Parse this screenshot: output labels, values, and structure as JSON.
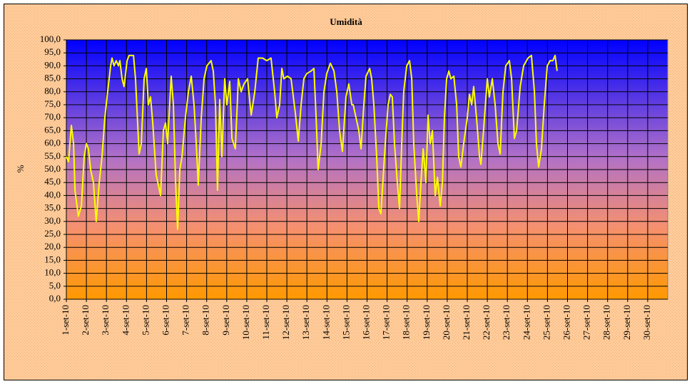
{
  "chart_data": {
    "type": "line",
    "title": "Umidità",
    "y_label": "%",
    "xlim": [
      1,
      31
    ],
    "ylim": [
      0,
      100
    ],
    "grid": true,
    "xticks": [
      {
        "value": 1,
        "label": "1-set-10"
      },
      {
        "value": 2,
        "label": "2-set-10"
      },
      {
        "value": 3,
        "label": "3-set-10"
      },
      {
        "value": 4,
        "label": "4-set-10"
      },
      {
        "value": 5,
        "label": "5-set-10"
      },
      {
        "value": 6,
        "label": "6-set-10"
      },
      {
        "value": 7,
        "label": "7-set-10"
      },
      {
        "value": 8,
        "label": "8-set-10"
      },
      {
        "value": 9,
        "label": "9-set-10"
      },
      {
        "value": 10,
        "label": "10-set-10"
      },
      {
        "value": 11,
        "label": "11-set-10"
      },
      {
        "value": 12,
        "label": "12-set-10"
      },
      {
        "value": 13,
        "label": "13-set-10"
      },
      {
        "value": 14,
        "label": "14-set-10"
      },
      {
        "value": 15,
        "label": "15-set-10"
      },
      {
        "value": 16,
        "label": "16-set-10"
      },
      {
        "value": 17,
        "label": "17-set-10"
      },
      {
        "value": 18,
        "label": "18-set-10"
      },
      {
        "value": 19,
        "label": "19-set-10"
      },
      {
        "value": 20,
        "label": "20-set-10"
      },
      {
        "value": 21,
        "label": "21-set-10"
      },
      {
        "value": 22,
        "label": "22-set-10"
      },
      {
        "value": 23,
        "label": "23-set-10"
      },
      {
        "value": 24,
        "label": "24-set-10"
      },
      {
        "value": 25,
        "label": "25-set-10"
      },
      {
        "value": 26,
        "label": "26-set-10"
      },
      {
        "value": 27,
        "label": "27-set-10"
      },
      {
        "value": 28,
        "label": "28-set-10"
      },
      {
        "value": 29,
        "label": "29-set-10"
      },
      {
        "value": 30,
        "label": "30-set-10"
      }
    ],
    "yticks": [
      {
        "value": 0,
        "label": "0,0"
      },
      {
        "value": 5,
        "label": "5,0"
      },
      {
        "value": 10,
        "label": "10,0"
      },
      {
        "value": 15,
        "label": "15,0"
      },
      {
        "value": 20,
        "label": "20,0"
      },
      {
        "value": 25,
        "label": "25,0"
      },
      {
        "value": 30,
        "label": "30,0"
      },
      {
        "value": 35,
        "label": "35,0"
      },
      {
        "value": 40,
        "label": "40,0"
      },
      {
        "value": 45,
        "label": "45,0"
      },
      {
        "value": 50,
        "label": "50,0"
      },
      {
        "value": 55,
        "label": "55,0"
      },
      {
        "value": 60,
        "label": "60,0"
      },
      {
        "value": 65,
        "label": "65,0"
      },
      {
        "value": 70,
        "label": "70,0"
      },
      {
        "value": 75,
        "label": "75,0"
      },
      {
        "value": 80,
        "label": "80,0"
      },
      {
        "value": 85,
        "label": "85,0"
      },
      {
        "value": 90,
        "label": "90,0"
      },
      {
        "value": 95,
        "label": "95,0"
      },
      {
        "value": 100,
        "label": "100,0"
      }
    ],
    "x": [
      1.0,
      1.11,
      1.25,
      1.36,
      1.43,
      1.6,
      1.75,
      1.89,
      2.0,
      2.1,
      2.21,
      2.35,
      2.49,
      2.64,
      2.78,
      2.92,
      3.06,
      3.21,
      3.28,
      3.38,
      3.49,
      3.6,
      3.67,
      3.78,
      3.88,
      4.03,
      4.13,
      4.35,
      4.45,
      4.63,
      4.74,
      4.88,
      4.99,
      5.09,
      5.2,
      5.31,
      5.48,
      5.7,
      5.84,
      5.95,
      6.05,
      6.23,
      6.34,
      6.45,
      6.55,
      6.66,
      6.77,
      6.94,
      7.09,
      7.23,
      7.37,
      7.48,
      7.58,
      7.73,
      7.87,
      8.01,
      8.22,
      8.33,
      8.44,
      8.54,
      8.65,
      8.76,
      8.9,
      9.01,
      9.15,
      9.26,
      9.43,
      9.58,
      9.72,
      9.86,
      10.04,
      10.22,
      10.4,
      10.57,
      10.79,
      11.0,
      11.21,
      11.39,
      11.5,
      11.64,
      11.75,
      11.85,
      12.03,
      12.21,
      12.42,
      12.57,
      12.71,
      12.85,
      12.99,
      13.21,
      13.35,
      13.46,
      13.56,
      13.71,
      13.85,
      13.99,
      14.17,
      14.35,
      14.49,
      14.63,
      14.77,
      14.95,
      15.09,
      15.24,
      15.31,
      15.45,
      15.59,
      15.7,
      15.84,
      15.95,
      16.13,
      16.23,
      16.34,
      16.48,
      16.59,
      16.69,
      16.91,
      17.05,
      17.16,
      17.26,
      17.37,
      17.51,
      17.62,
      17.73,
      17.83,
      17.98,
      18.12,
      18.23,
      18.33,
      18.48,
      18.58,
      18.69,
      18.8,
      18.94,
      19.04,
      19.15,
      19.26,
      19.4,
      19.51,
      19.65,
      19.76,
      19.86,
      19.97,
      20.08,
      20.18,
      20.33,
      20.47,
      20.57,
      20.68,
      20.82,
      21.0,
      21.11,
      21.22,
      21.32,
      21.46,
      21.61,
      21.68,
      21.82,
      22.0,
      22.1,
      22.25,
      22.39,
      22.53,
      22.64,
      22.78,
      22.92,
      23.1,
      23.21,
      23.35,
      23.46,
      23.64,
      23.81,
      24.03,
      24.2,
      24.35,
      24.45,
      24.56,
      24.7,
      24.84,
      24.99,
      25.13,
      25.27,
      25.38,
      25.48
    ],
    "series": [
      {
        "name": "Umidità",
        "color": "#ffff00",
        "values": [
          55,
          53,
          67,
          60,
          42,
          32,
          36,
          55,
          60,
          58,
          50,
          45,
          30,
          45,
          55,
          70,
          80,
          90,
          93,
          90,
          92,
          90,
          92,
          85,
          82,
          92,
          94,
          94,
          85,
          56,
          60,
          85,
          89,
          75,
          78,
          68,
          48,
          40,
          65,
          68,
          60,
          86,
          75,
          45,
          27,
          50,
          55,
          70,
          80,
          86,
          75,
          60,
          44,
          70,
          85,
          90,
          92,
          88,
          75,
          42,
          77,
          55,
          85,
          75,
          84,
          62,
          58,
          85,
          80,
          83,
          85,
          71,
          80,
          93,
          93,
          92,
          93,
          80,
          70,
          75,
          89,
          85,
          86,
          85,
          72,
          61,
          75,
          85,
          87,
          88,
          89,
          70,
          50,
          60,
          80,
          87,
          91,
          88,
          80,
          65,
          57,
          78,
          83,
          75,
          75,
          70,
          65,
          58,
          75,
          86,
          89,
          85,
          75,
          55,
          35,
          33,
          60,
          75,
          79,
          78,
          60,
          45,
          35,
          60,
          80,
          90,
          92,
          85,
          60,
          40,
          30,
          45,
          58,
          45,
          71,
          60,
          65,
          40,
          47,
          36,
          45,
          70,
          85,
          88,
          85,
          86,
          75,
          55,
          51,
          60,
          70,
          79,
          75,
          82,
          70,
          55,
          52,
          66,
          85,
          78,
          85,
          75,
          60,
          56,
          80,
          90,
          92,
          85,
          62,
          65,
          82,
          90,
          93,
          94,
          80,
          60,
          51,
          58,
          75,
          90,
          92,
          92,
          94,
          88
        ]
      }
    ]
  }
}
